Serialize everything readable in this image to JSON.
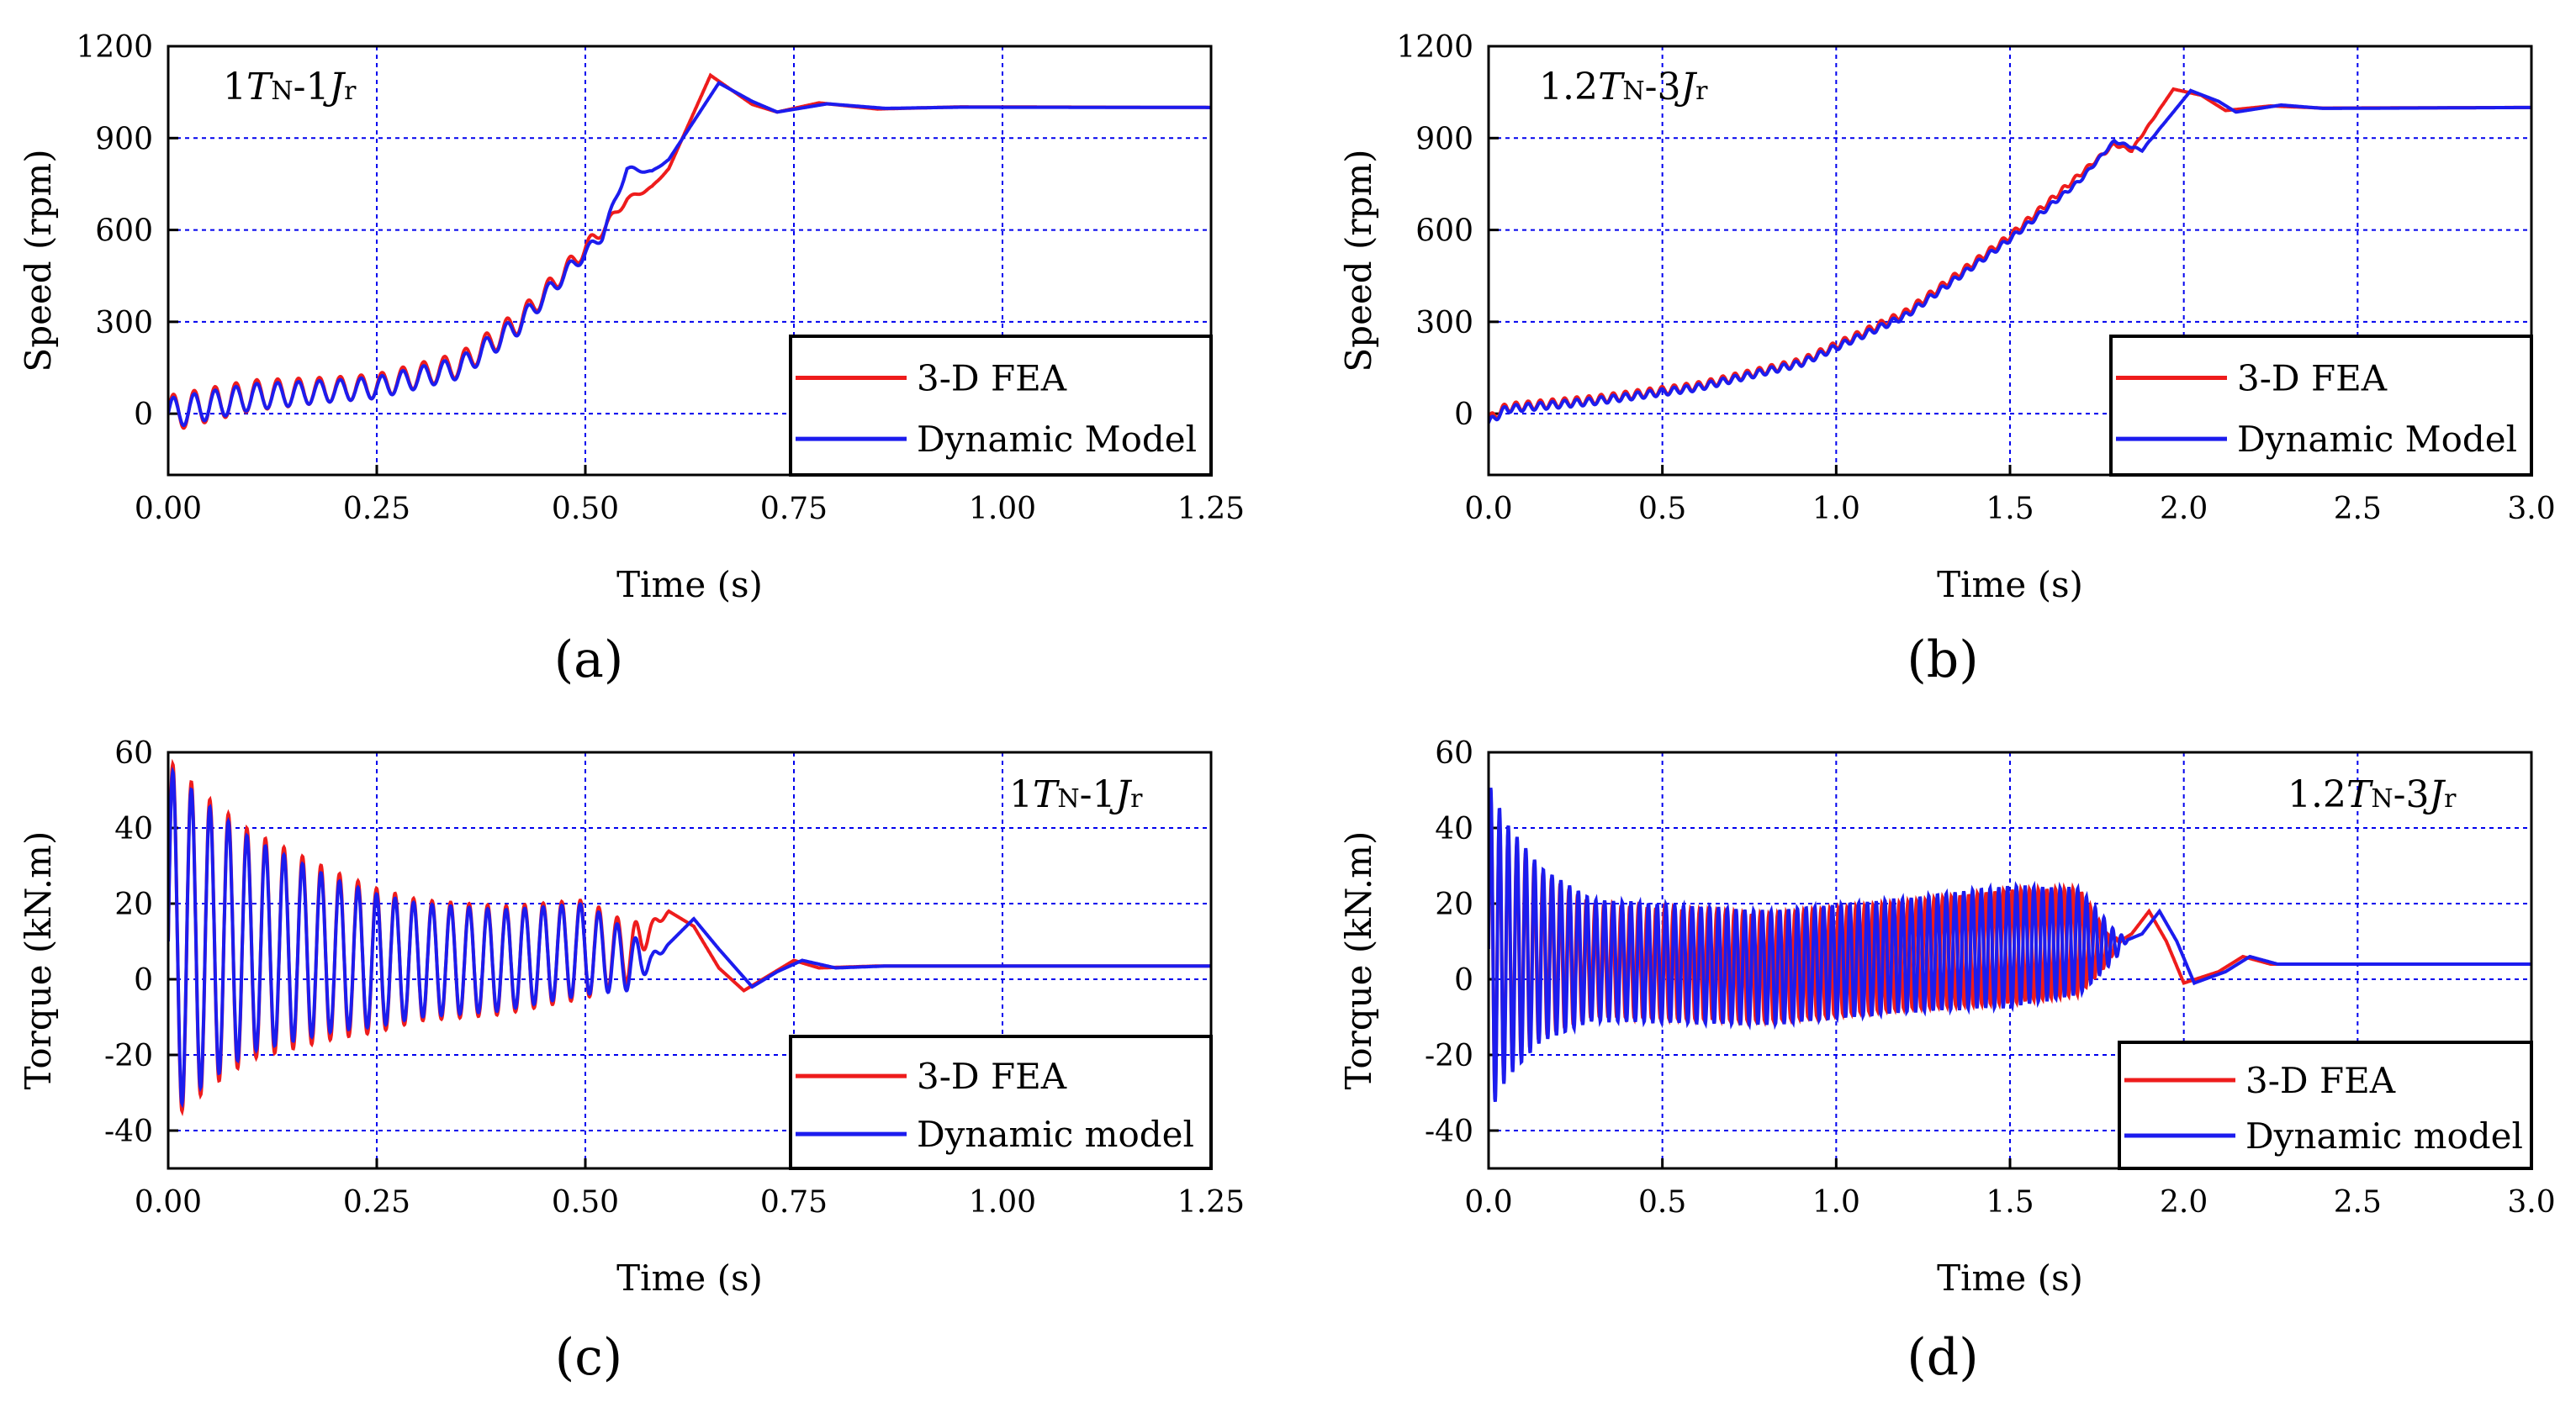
{
  "colors": {
    "fea": "#ee1c1c",
    "model": "#1c1cee",
    "grid": "#0000ee"
  },
  "chart_data": [
    {
      "id": "a",
      "type": "line",
      "panel_label": "(a)",
      "annotation": {
        "pre": "1",
        "T": "T",
        "N": "N",
        "mid": "-1",
        "J": "J",
        "r": "r"
      },
      "xlabel": "Time (s)",
      "ylabel": "Speed (rpm)",
      "xlim": [
        0,
        1.25
      ],
      "ylim": [
        -200,
        1200
      ],
      "xticks": [
        "0.00",
        "0.25",
        "0.50",
        "0.75",
        "1.00",
        "1.25"
      ],
      "yticks": [
        "0",
        "300",
        "600",
        "900",
        "1200"
      ],
      "grid": true,
      "legend_position": "bottom-right",
      "series": [
        {
          "name": "3-D FEA",
          "color_key": "fea",
          "envelope": [
            [
              0,
              0
            ],
            [
              0.1,
              60
            ],
            [
              0.25,
              90
            ],
            [
              0.35,
              160
            ],
            [
              0.42,
              300
            ],
            [
              0.48,
              480
            ],
            [
              0.52,
              600
            ],
            [
              0.55,
              700
            ],
            [
              0.58,
              740
            ],
            [
              0.6,
              800
            ],
            [
              0.65,
              1105
            ],
            [
              0.7,
              1010
            ],
            [
              0.73,
              985
            ],
            [
              0.78,
              1015
            ],
            [
              0.85,
              995
            ],
            [
              0.95,
              1002
            ],
            [
              1.25,
              1000
            ]
          ],
          "osc": [
            [
              0,
              60
            ],
            [
              0.2,
              40
            ],
            [
              0.4,
              40
            ],
            [
              0.5,
              25
            ],
            [
              0.55,
              8
            ],
            [
              0.6,
              0
            ]
          ],
          "period": 0.025
        },
        {
          "name": "Dynamic Model",
          "color_key": "model",
          "envelope": [
            [
              0,
              0
            ],
            [
              0.1,
              55
            ],
            [
              0.25,
              85
            ],
            [
              0.35,
              150
            ],
            [
              0.42,
              290
            ],
            [
              0.48,
              470
            ],
            [
              0.52,
              580
            ],
            [
              0.55,
              800
            ],
            [
              0.58,
              790
            ],
            [
              0.6,
              830
            ],
            [
              0.66,
              1080
            ],
            [
              0.7,
              1020
            ],
            [
              0.73,
              985
            ],
            [
              0.79,
              1012
            ],
            [
              0.86,
              997
            ],
            [
              0.95,
              1001
            ],
            [
              1.25,
              1000
            ]
          ],
          "osc": [
            [
              0,
              50
            ],
            [
              0.2,
              35
            ],
            [
              0.4,
              35
            ],
            [
              0.5,
              20
            ],
            [
              0.55,
              8
            ],
            [
              0.6,
              0
            ]
          ],
          "period": 0.025
        }
      ]
    },
    {
      "id": "b",
      "type": "line",
      "panel_label": "(b)",
      "annotation": {
        "pre": "1.2",
        "T": "T",
        "N": "N",
        "mid": "-3",
        "J": "J",
        "r": "r"
      },
      "xlabel": "Time (s)",
      "ylabel": "Speed (rpm)",
      "xlim": [
        0,
        3.0
      ],
      "ylim": [
        -200,
        1200
      ],
      "xticks": [
        "0.0",
        "0.5",
        "1.0",
        "1.5",
        "2.0",
        "2.5",
        "3.0"
      ],
      "yticks": [
        "0",
        "300",
        "600",
        "900",
        "1200"
      ],
      "grid": true,
      "legend_position": "bottom-right",
      "series": [
        {
          "name": "3-D FEA",
          "color_key": "fea",
          "envelope": [
            [
              0,
              -20
            ],
            [
              0.05,
              20
            ],
            [
              0.3,
              45
            ],
            [
              0.6,
              90
            ],
            [
              0.9,
              170
            ],
            [
              1.2,
              330
            ],
            [
              1.5,
              580
            ],
            [
              1.7,
              780
            ],
            [
              1.8,
              880
            ],
            [
              1.85,
              860
            ],
            [
              1.97,
              1060
            ],
            [
              2.05,
              1040
            ],
            [
              2.12,
              990
            ],
            [
              2.25,
              1005
            ],
            [
              2.4,
              998
            ],
            [
              3.0,
              1000
            ]
          ],
          "osc": [
            [
              0,
              15
            ],
            [
              1.2,
              12
            ],
            [
              1.6,
              10
            ],
            [
              1.85,
              4
            ],
            [
              1.95,
              0
            ]
          ],
          "period": 0.035
        },
        {
          "name": "Dynamic Model",
          "color_key": "model",
          "envelope": [
            [
              0,
              -30
            ],
            [
              0.05,
              15
            ],
            [
              0.3,
              40
            ],
            [
              0.6,
              85
            ],
            [
              0.9,
              165
            ],
            [
              1.2,
              320
            ],
            [
              1.5,
              570
            ],
            [
              1.7,
              760
            ],
            [
              1.8,
              890
            ],
            [
              1.88,
              860
            ],
            [
              2.02,
              1055
            ],
            [
              2.1,
              1020
            ],
            [
              2.15,
              985
            ],
            [
              2.28,
              1008
            ],
            [
              2.4,
              997
            ],
            [
              3.0,
              1000
            ]
          ],
          "osc": [
            [
              0,
              12
            ],
            [
              1.2,
              10
            ],
            [
              1.6,
              8
            ],
            [
              1.85,
              3
            ],
            [
              1.95,
              0
            ]
          ],
          "period": 0.035
        }
      ]
    },
    {
      "id": "c",
      "type": "line",
      "panel_label": "(c)",
      "annotation": {
        "pre": "1",
        "T": "T",
        "N": "N",
        "mid": "-1",
        "J": "J",
        "r": "r"
      },
      "xlabel": "Time (s)",
      "ylabel": "Torque (kN.m)",
      "xlim": [
        0,
        1.25
      ],
      "ylim": [
        -50,
        60
      ],
      "xticks": [
        "0.00",
        "0.25",
        "0.50",
        "0.75",
        "1.00",
        "1.25"
      ],
      "yticks": [
        "-40",
        "-20",
        "0",
        "20",
        "40",
        "60"
      ],
      "grid": true,
      "legend_position": "bottom-right",
      "series": [
        {
          "name": "3-D FEA",
          "color_key": "fea",
          "envelope": [
            [
              0,
              10
            ],
            [
              0.1,
              9
            ],
            [
              0.25,
              5
            ],
            [
              0.4,
              5
            ],
            [
              0.5,
              8
            ],
            [
              0.55,
              7
            ],
            [
              0.6,
              18
            ],
            [
              0.63,
              14
            ],
            [
              0.66,
              3
            ],
            [
              0.69,
              -3
            ],
            [
              0.72,
              1
            ],
            [
              0.75,
              5
            ],
            [
              0.78,
              3
            ],
            [
              0.85,
              3.5
            ],
            [
              1.25,
              3.5
            ]
          ],
          "osc": [
            [
              0,
              48
            ],
            [
              0.05,
              38
            ],
            [
              0.1,
              30
            ],
            [
              0.2,
              22
            ],
            [
              0.3,
              16
            ],
            [
              0.42,
              14
            ],
            [
              0.5,
              13
            ],
            [
              0.55,
              8
            ],
            [
              0.58,
              2
            ],
            [
              0.6,
              0
            ]
          ],
          "period": 0.0222
        },
        {
          "name": "Dynamic model",
          "color_key": "model",
          "envelope": [
            [
              0,
              10
            ],
            [
              0.1,
              9
            ],
            [
              0.25,
              5
            ],
            [
              0.4,
              5
            ],
            [
              0.5,
              8
            ],
            [
              0.55,
              5
            ],
            [
              0.58,
              5
            ],
            [
              0.63,
              16
            ],
            [
              0.66,
              8
            ],
            [
              0.7,
              -2
            ],
            [
              0.73,
              2
            ],
            [
              0.76,
              5
            ],
            [
              0.8,
              3
            ],
            [
              0.86,
              3.5
            ],
            [
              1.25,
              3.5
            ]
          ],
          "osc": [
            [
              0,
              46
            ],
            [
              0.05,
              36
            ],
            [
              0.1,
              28
            ],
            [
              0.2,
              20
            ],
            [
              0.3,
              15
            ],
            [
              0.42,
              13
            ],
            [
              0.5,
              12
            ],
            [
              0.55,
              8
            ],
            [
              0.58,
              2
            ],
            [
              0.6,
              0
            ]
          ],
          "period": 0.0222
        }
      ]
    },
    {
      "id": "d",
      "type": "line",
      "panel_label": "(d)",
      "annotation": {
        "pre": "1.2",
        "T": "T",
        "N": "N",
        "mid": "-3",
        "J": "J",
        "r": "r"
      },
      "xlabel": "Time (s)",
      "ylabel": "Torque (kN.m)",
      "xlim": [
        0,
        3.0
      ],
      "ylim": [
        -50,
        60
      ],
      "xticks": [
        "0.0",
        "0.5",
        "1.0",
        "1.5",
        "2.0",
        "2.5",
        "3.0"
      ],
      "yticks": [
        "-40",
        "-20",
        "0",
        "20",
        "40",
        "60"
      ],
      "grid": true,
      "legend_position": "bottom-right",
      "series": [
        {
          "name": "3-D FEA",
          "color_key": "fea",
          "envelope": [
            [
              0,
              8
            ],
            [
              0.3,
              5
            ],
            [
              0.8,
              3
            ],
            [
              1.4,
              8
            ],
            [
              1.7,
              10
            ],
            [
              1.78,
              8
            ],
            [
              1.85,
              12
            ],
            [
              1.9,
              18
            ],
            [
              1.95,
              10
            ],
            [
              2.0,
              -1
            ],
            [
              2.1,
              2
            ],
            [
              2.17,
              6
            ],
            [
              2.25,
              4
            ],
            [
              2.35,
              4
            ],
            [
              3.0,
              4
            ]
          ],
          "osc": [
            [
              0,
              42
            ],
            [
              0.05,
              32
            ],
            [
              0.15,
              22
            ],
            [
              0.3,
              15
            ],
            [
              0.8,
              14
            ],
            [
              1.2,
              14
            ],
            [
              1.5,
              15
            ],
            [
              1.7,
              14
            ],
            [
              1.78,
              4
            ],
            [
              1.82,
              0
            ]
          ],
          "period": 0.025
        },
        {
          "name": "Dynamic model",
          "color_key": "model",
          "envelope": [
            [
              0,
              8
            ],
            [
              0.3,
              5
            ],
            [
              0.8,
              3
            ],
            [
              1.4,
              8
            ],
            [
              1.7,
              10
            ],
            [
              1.8,
              9
            ],
            [
              1.88,
              12
            ],
            [
              1.93,
              18
            ],
            [
              1.98,
              10
            ],
            [
              2.03,
              -1
            ],
            [
              2.12,
              2
            ],
            [
              2.19,
              6
            ],
            [
              2.27,
              4
            ],
            [
              2.37,
              4
            ],
            [
              3.0,
              4
            ]
          ],
          "osc": [
            [
              0,
              44
            ],
            [
              0.05,
              34
            ],
            [
              0.15,
              23
            ],
            [
              0.3,
              16
            ],
            [
              0.8,
              15
            ],
            [
              1.2,
              15
            ],
            [
              1.5,
              16
            ],
            [
              1.7,
              14
            ],
            [
              1.8,
              4
            ],
            [
              1.84,
              0
            ]
          ],
          "period": 0.0252
        }
      ]
    }
  ]
}
